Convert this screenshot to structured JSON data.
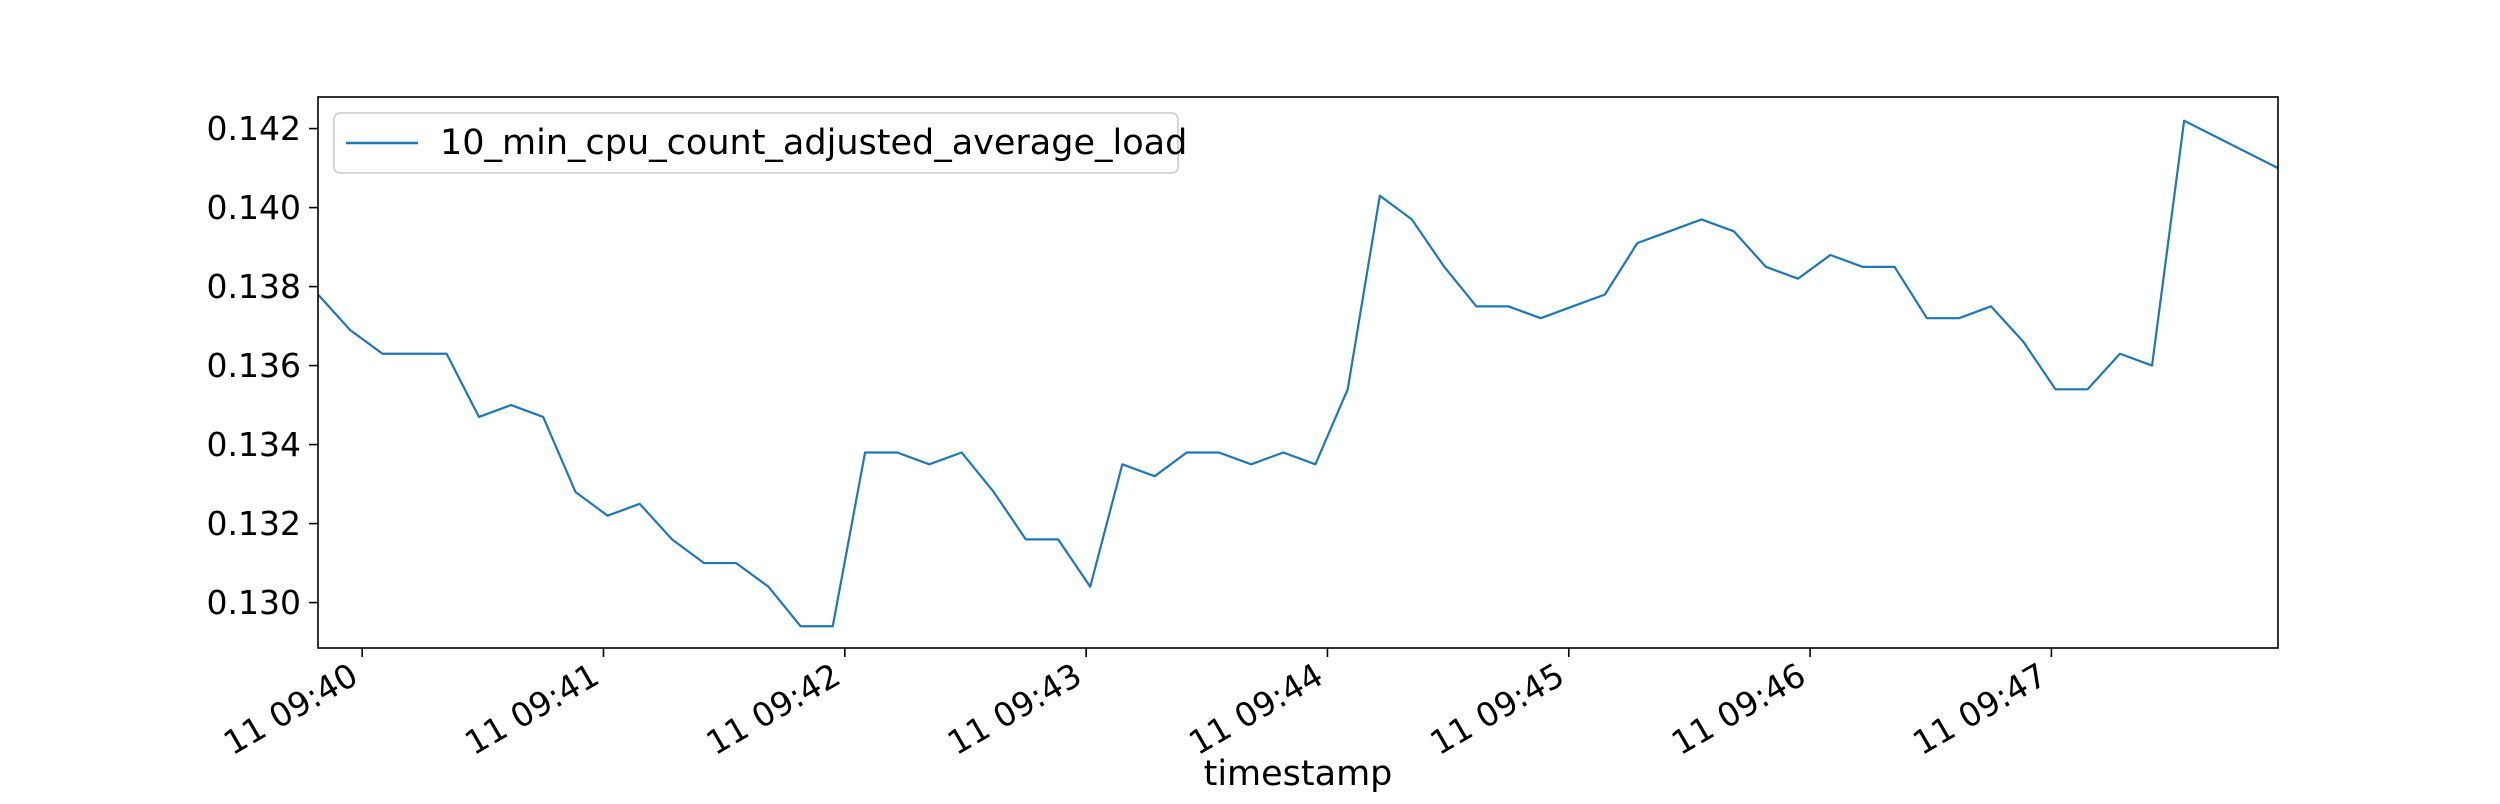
{
  "chart_data": {
    "type": "line",
    "title": "",
    "xlabel": "timestamp",
    "ylabel": "",
    "x_unit": "minutes",
    "xlim": [
      0,
      8.122
    ],
    "ylim": [
      0.12885,
      0.1428
    ],
    "x_ticks": [
      {
        "value": 0.183,
        "label": "11 09:40"
      },
      {
        "value": 1.183,
        "label": "11 09:41"
      },
      {
        "value": 2.183,
        "label": "11 09:42"
      },
      {
        "value": 3.183,
        "label": "11 09:43"
      },
      {
        "value": 4.183,
        "label": "11 09:44"
      },
      {
        "value": 5.183,
        "label": "11 09:45"
      },
      {
        "value": 6.183,
        "label": "11 09:46"
      },
      {
        "value": 7.183,
        "label": "11 09:47"
      }
    ],
    "y_ticks": [
      {
        "value": 0.13,
        "label": "0.130"
      },
      {
        "value": 0.132,
        "label": "0.132"
      },
      {
        "value": 0.134,
        "label": "0.134"
      },
      {
        "value": 0.136,
        "label": "0.136"
      },
      {
        "value": 0.138,
        "label": "0.138"
      },
      {
        "value": 0.14,
        "label": "0.140"
      },
      {
        "value": 0.142,
        "label": "0.142"
      }
    ],
    "grid": false,
    "legend_position": "upper-left",
    "series": [
      {
        "name": "10_min_cpu_count_adjusted_average_load",
        "color": "#1f77b4",
        "points": [
          [
            0.0,
            0.1378
          ],
          [
            0.133,
            0.1369
          ],
          [
            0.267,
            0.1363
          ],
          [
            0.4,
            0.1363
          ],
          [
            0.533,
            0.1363
          ],
          [
            0.667,
            0.1347
          ],
          [
            0.8,
            0.135
          ],
          [
            0.933,
            0.1347
          ],
          [
            1.067,
            0.1328
          ],
          [
            1.2,
            0.1322
          ],
          [
            1.333,
            0.1325
          ],
          [
            1.467,
            0.1316
          ],
          [
            1.6,
            0.131
          ],
          [
            1.733,
            0.131
          ],
          [
            1.867,
            0.1304
          ],
          [
            2.0,
            0.1294
          ],
          [
            2.133,
            0.1294
          ],
          [
            2.267,
            0.1338
          ],
          [
            2.4,
            0.1338
          ],
          [
            2.533,
            0.1335
          ],
          [
            2.667,
            0.1338
          ],
          [
            2.8,
            0.1328
          ],
          [
            2.933,
            0.1316
          ],
          [
            3.067,
            0.1316
          ],
          [
            3.2,
            0.1304
          ],
          [
            3.333,
            0.1335
          ],
          [
            3.467,
            0.1332
          ],
          [
            3.6,
            0.1338
          ],
          [
            3.733,
            0.1338
          ],
          [
            3.867,
            0.1335
          ],
          [
            4.0,
            0.1338
          ],
          [
            4.133,
            0.1335
          ],
          [
            4.267,
            0.1354
          ],
          [
            4.4,
            0.1403
          ],
          [
            4.533,
            0.1397
          ],
          [
            4.667,
            0.1385
          ],
          [
            4.8,
            0.1375
          ],
          [
            4.933,
            0.1375
          ],
          [
            5.067,
            0.1372
          ],
          [
            5.2,
            0.1375
          ],
          [
            5.333,
            0.1378
          ],
          [
            5.467,
            0.1391
          ],
          [
            5.6,
            0.1394
          ],
          [
            5.733,
            0.1397
          ],
          [
            5.867,
            0.1394
          ],
          [
            6.0,
            0.1385
          ],
          [
            6.133,
            0.1382
          ],
          [
            6.267,
            0.1388
          ],
          [
            6.4,
            0.1385
          ],
          [
            6.533,
            0.1385
          ],
          [
            6.667,
            0.1372
          ],
          [
            6.8,
            0.1372
          ],
          [
            6.933,
            0.1375
          ],
          [
            7.067,
            0.1366
          ],
          [
            7.2,
            0.1354
          ],
          [
            7.333,
            0.1354
          ],
          [
            7.467,
            0.1363
          ],
          [
            7.6,
            0.136
          ],
          [
            7.733,
            0.1422
          ],
          [
            8.122,
            0.141
          ]
        ]
      }
    ]
  }
}
